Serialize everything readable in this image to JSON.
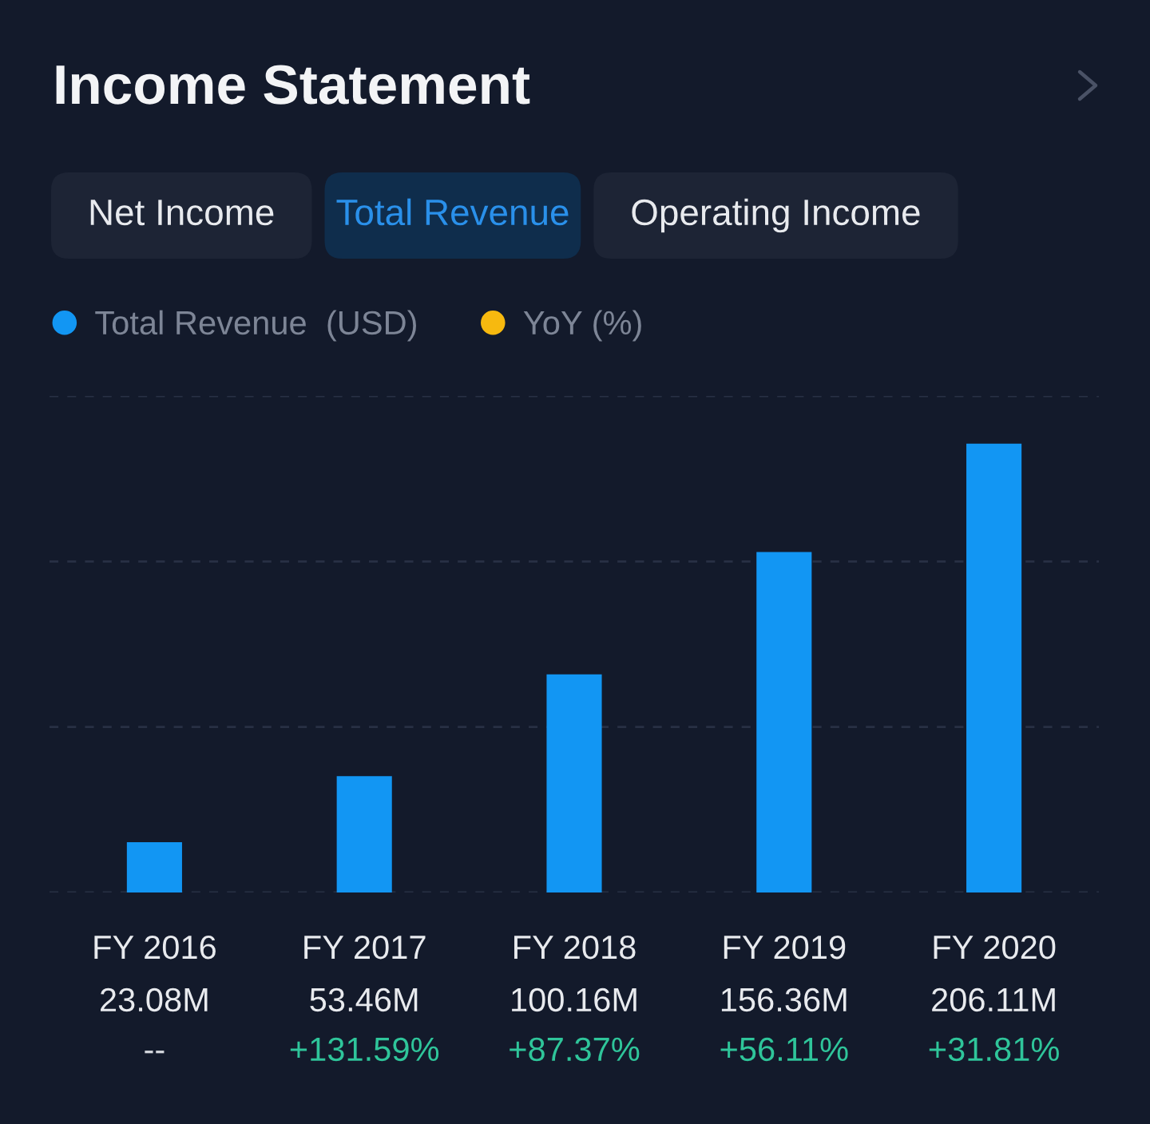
{
  "chart_data": [
    {
      "type": "bar",
      "title": "Income Statement",
      "annotations": [
        "Net Income",
        "Total Revenue",
        "Operating Income"
      ],
      "categories": [
        "FY 2016",
        "FY 2017",
        "FY 2018",
        "FY 2019",
        "FY 2020"
      ],
      "series": [
        {
          "name": "Total Revenue  (USD)",
          "color": "#1296f3",
          "values": [
            23.08,
            53.46,
            100.16,
            156.36,
            206.11
          ],
          "value_labels": [
            "23.08M",
            "53.46M",
            "100.16M",
            "156.36M",
            "206.11M"
          ]
        }
      ],
      "ylim": [
        0,
        228
      ],
      "yticks": [
        {
          "value": 0,
          "label": null
        },
        {
          "value": 76,
          "label": null
        },
        {
          "value": 152,
          "label": null
        },
        {
          "value": 228,
          "label": null
        }
      ],
      "grid": "y",
      "legend": "top left",
      "tick_labels": "x"
    },
    {
      "type": "other",
      "series": [
        {
          "name": "YoY (%)",
          "color": "#f7b90f",
          "values": [
            null,
            131.59,
            87.37,
            56.11,
            31.81
          ],
          "value_labels": [
            "--",
            "+131.59%",
            "+87.37%",
            "+56.11%",
            "+31.81%"
          ]
        }
      ],
      "legend": "top left"
    }
  ]
}
